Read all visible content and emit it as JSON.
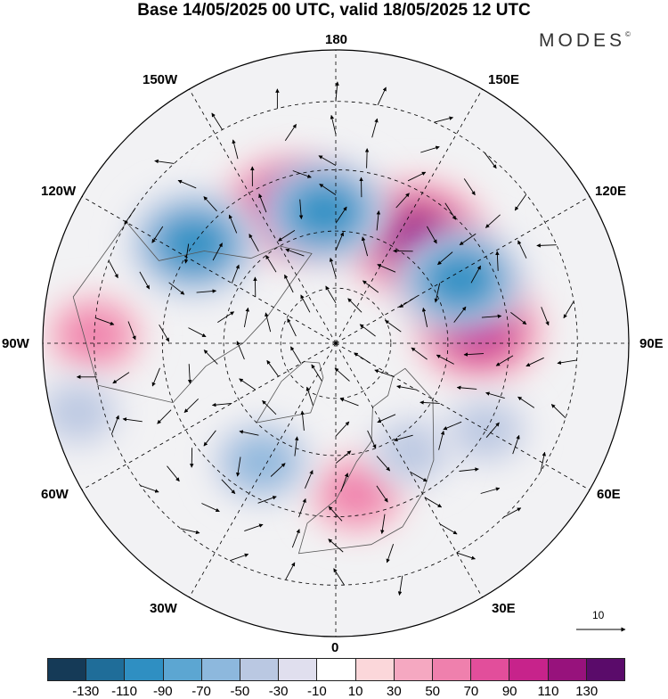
{
  "header": {
    "title": "Base 14/05/2025 00 UTC, valid 18/05/2025 12 UTC",
    "brand": "MODES",
    "brand_mark": "©"
  },
  "map": {
    "projection": "north-polar-stereographic",
    "longitude_labels": {
      "top": "180",
      "top_left": "150W",
      "top_right": "150E",
      "upper_left": "120W",
      "upper_right": "120E",
      "left": "90W",
      "right": "90E",
      "lower_left": "60W",
      "lower_right": "60E",
      "bottom_left": "30W",
      "bottom_right": "30E",
      "bottom": "0"
    },
    "reference_vector_label": "10",
    "anomaly_centers": [
      {
        "lon": 143,
        "lat": 55,
        "value": 120
      },
      {
        "lon": -160,
        "lat": 52,
        "value": 105
      },
      {
        "lon": 95,
        "lat": 52,
        "value": 90
      },
      {
        "lon": -92,
        "lat": 30,
        "value": 60
      },
      {
        "lon": 8,
        "lat": 50,
        "value": 65
      },
      {
        "lon": -175,
        "lat": 55,
        "value": -90
      },
      {
        "lon": 117,
        "lat": 53,
        "value": -105
      },
      {
        "lon": -125,
        "lat": 45,
        "value": -105
      },
      {
        "lon": -32,
        "lat": 53,
        "value": -50
      },
      {
        "lon": 35,
        "lat": 55,
        "value": -45
      },
      {
        "lon": 60,
        "lat": 45,
        "value": -45
      },
      {
        "lon": -75,
        "lat": 25,
        "value": -40
      }
    ]
  },
  "colorbar": {
    "colors": [
      "#153a57",
      "#1f6d99",
      "#2f8fc2",
      "#5ca6d2",
      "#8db8dd",
      "#bac8e2",
      "#e0dfee",
      "#ffffff",
      "#fbd7da",
      "#f5a8c1",
      "#ef80ad",
      "#e24e9b",
      "#c7238b",
      "#97127c",
      "#5a0b6a"
    ],
    "tick_labels": [
      "-130",
      "-110",
      "-90",
      "-70",
      "-50",
      "-30",
      "-10",
      "10",
      "30",
      "50",
      "70",
      "90",
      "110",
      "130"
    ]
  }
}
